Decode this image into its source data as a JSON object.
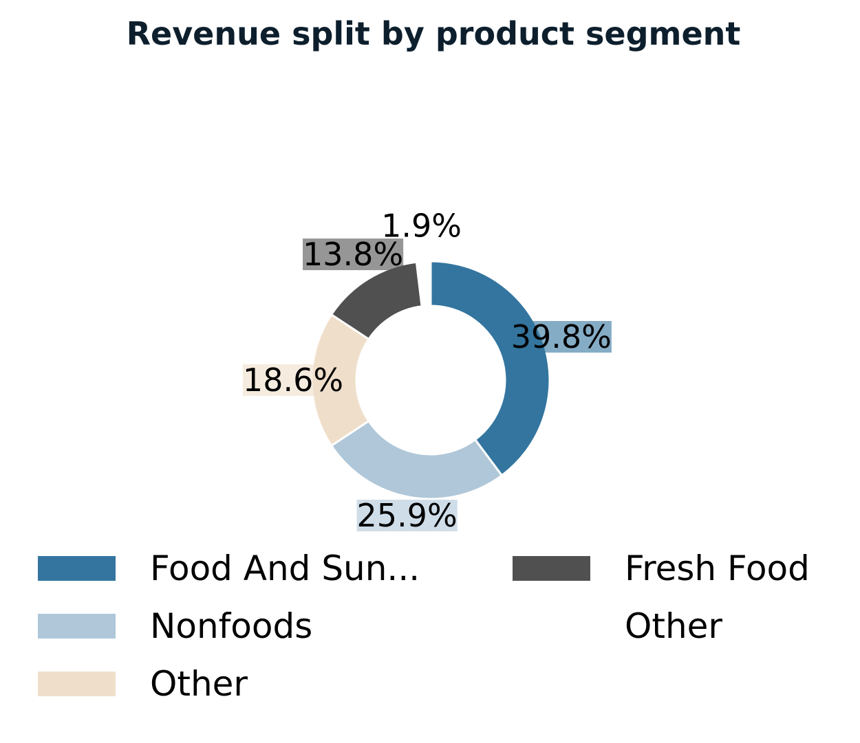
{
  "chart_data": {
    "type": "pie",
    "variant": "donut",
    "title": "Revenue split by product segment",
    "slices": [
      {
        "label": "Food And Sun...",
        "value": 39.8,
        "display": "39.8%",
        "color": "#33759f"
      },
      {
        "label": "Nonfoods",
        "value": 25.9,
        "display": "25.9%",
        "color": "#afc7d8"
      },
      {
        "label": "Other",
        "value": 18.6,
        "display": "18.6%",
        "color": "#efdfca"
      },
      {
        "label": "Fresh Food",
        "value": 13.8,
        "display": "13.8%",
        "color": "#505050"
      },
      {
        "label": "Other",
        "value": 1.9,
        "display": "1.9%",
        "color": "#ffffff"
      }
    ],
    "legend_position": "bottom"
  }
}
